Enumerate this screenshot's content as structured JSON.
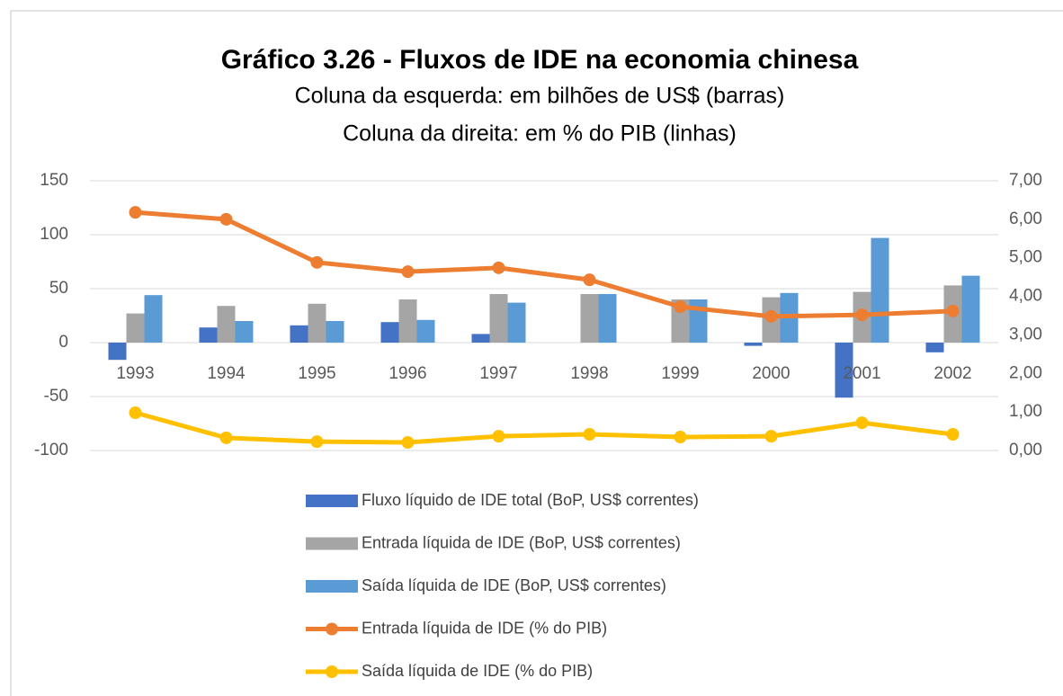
{
  "chart_data": {
    "type": "combo",
    "title": "Gráfico 3.26 - Fluxos de IDE na economia chinesa",
    "subtitle": [
      "Coluna da esquerda: em bilhões de US$ (barras)",
      "Coluna da direita: em % do PIB (linhas)"
    ],
    "categories": [
      "1993",
      "1994",
      "1995",
      "1996",
      "1997",
      "1998",
      "1999",
      "2000",
      "2001",
      "2002"
    ],
    "series": [
      {
        "name": "Fluxo líquido de IDE total (BoP, US$ correntes)",
        "type": "bar",
        "color": "#4472c4",
        "values": [
          -16,
          14,
          16,
          19,
          8,
          0,
          0,
          -3,
          -51,
          -9
        ]
      },
      {
        "name": "Entrada líquida de IDE (BoP, US$ correntes)",
        "type": "bar",
        "color": "#a5a5a5",
        "values": [
          27,
          34,
          36,
          40,
          45,
          45,
          40,
          42,
          47,
          53
        ]
      },
      {
        "name": "Saída líquida de IDE (BoP, US$ correntes)",
        "type": "bar",
        "color": "#5b9bd5",
        "values": [
          44,
          20,
          20,
          21,
          37,
          45,
          40,
          46,
          97,
          62
        ]
      },
      {
        "name": "Entrada líquida de IDE (% do PIB)",
        "type": "line",
        "axis": "y2",
        "color": "#ed7d31",
        "values": [
          6.18,
          6.0,
          4.88,
          4.64,
          4.74,
          4.43,
          3.73,
          3.48,
          3.52,
          3.62
        ]
      },
      {
        "name": "Saída líquida de IDE (% do PIB)",
        "type": "line",
        "axis": "y2",
        "color": "#ffc000",
        "values": [
          0.98,
          0.33,
          0.23,
          0.21,
          0.37,
          0.42,
          0.35,
          0.37,
          0.72,
          0.42
        ]
      }
    ],
    "ylim": [
      -100,
      150
    ],
    "yticks": [
      -100,
      -50,
      0,
      50,
      100,
      150
    ],
    "y2lim": [
      0,
      7
    ],
    "y2ticks": [
      {
        "value": 0,
        "label": "0,00"
      },
      {
        "value": 1,
        "label": "1,00"
      },
      {
        "value": 2,
        "label": "2,00"
      },
      {
        "value": 3,
        "label": "3,00"
      },
      {
        "value": 4,
        "label": "4,00"
      },
      {
        "value": 5,
        "label": "5,00"
      },
      {
        "value": 6,
        "label": "6,00"
      },
      {
        "value": 7,
        "label": "7,00"
      }
    ],
    "grid": true,
    "legend": "bottom"
  }
}
